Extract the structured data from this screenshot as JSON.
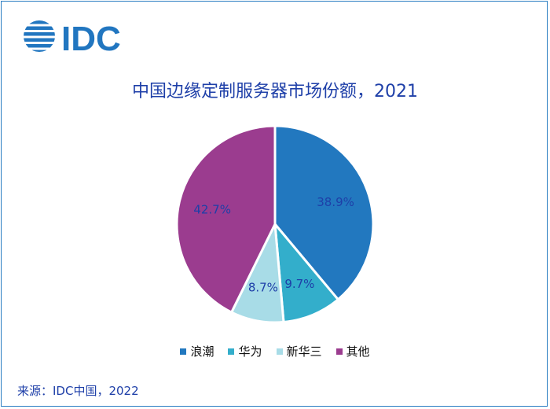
{
  "logo": {
    "text": "IDC",
    "color": "#2176c0"
  },
  "title": "中国边缘定制服务器市场份额，2021",
  "source": "来源：IDC中国，2022",
  "chart_data": {
    "type": "pie",
    "title": "中国边缘定制服务器市场份额，2021",
    "categories": [
      "浪潮",
      "华为",
      "新华三",
      "其他"
    ],
    "values": [
      38.9,
      9.7,
      8.7,
      42.7
    ],
    "labels": [
      "38.9%",
      "9.7%",
      "8.7%",
      "42.7%"
    ],
    "colors": [
      "#2278bf",
      "#33aecb",
      "#a8dce7",
      "#9b3c8f"
    ],
    "legend_position": "bottom",
    "start": "top, clockwise"
  }
}
